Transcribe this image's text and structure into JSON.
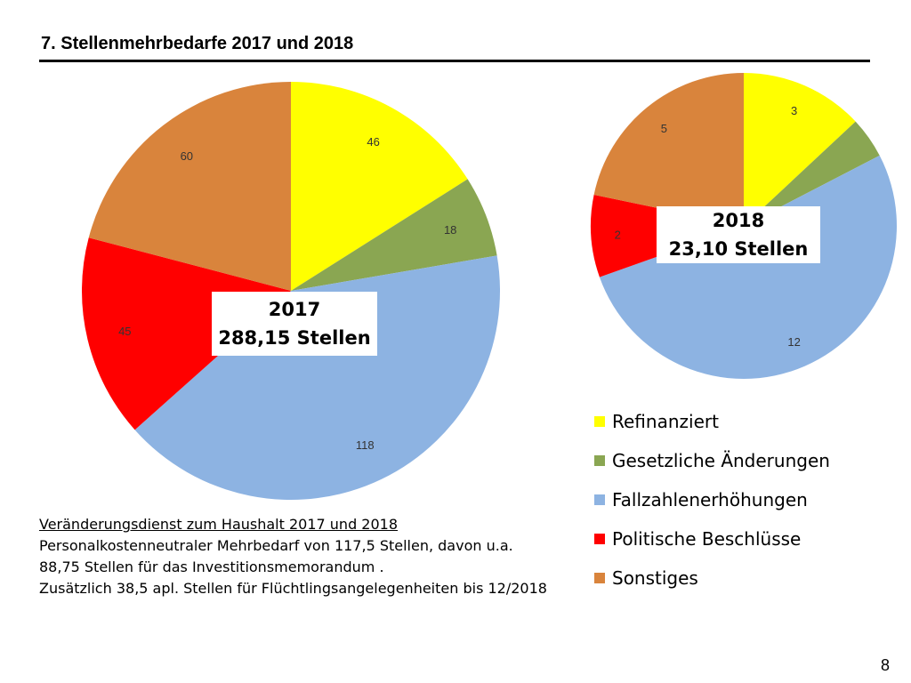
{
  "slide": {
    "title": "7. Stellenmehrbedarfe 2017 und 2018",
    "page_number": "8"
  },
  "legend": {
    "items": [
      {
        "label": "Refinanziert",
        "color": "#ffff00"
      },
      {
        "label": "Gesetzliche Änderungen",
        "color": "#8aa652"
      },
      {
        "label": "Fallzahlenerhöhungen",
        "color": "#8db3e2"
      },
      {
        "label": "Politische Beschlüsse",
        "color": "#ff0000"
      },
      {
        "label": "Sonstiges",
        "color": "#d9843c"
      }
    ]
  },
  "chart_data": [
    {
      "type": "pie",
      "center_label": {
        "year": "2017",
        "total": "288,15 Stellen"
      },
      "categories": [
        "Refinanziert",
        "Gesetzliche Änderungen",
        "Fallzahlenerhöhungen",
        "Politische Beschlüsse",
        "Sonstiges"
      ],
      "values": [
        46,
        18,
        118,
        45,
        60
      ],
      "colors": [
        "#ffff00",
        "#8aa652",
        "#8db3e2",
        "#ff0000",
        "#d9843c"
      ],
      "data_labels": [
        "46",
        "18",
        "118",
        "45",
        "60"
      ]
    },
    {
      "type": "pie",
      "center_label": {
        "year": "2018",
        "total": "23,10 Stellen"
      },
      "categories": [
        "Refinanziert",
        "Gesetzliche Änderungen",
        "Fallzahlenerhöhungen",
        "Politische Beschlüsse",
        "Sonstiges"
      ],
      "values": [
        3,
        1,
        12,
        2,
        5
      ],
      "colors": [
        "#ffff00",
        "#8aa652",
        "#8db3e2",
        "#ff0000",
        "#d9843c"
      ],
      "data_labels": [
        "3",
        "",
        "12",
        "2",
        "5"
      ]
    }
  ],
  "note": {
    "heading": "Veränderungsdienst zum Haushalt 2017 und 2018",
    "line1": "Personalkostenneutraler Mehrbedarf von 117,5 Stellen, davon u.a.",
    "line2": "88,75 Stellen für das Investitionsmemorandum .",
    "line3": "Zusätzlich 38,5 apl. Stellen für Flüchtlingsangelegenheiten bis 12/2018"
  }
}
